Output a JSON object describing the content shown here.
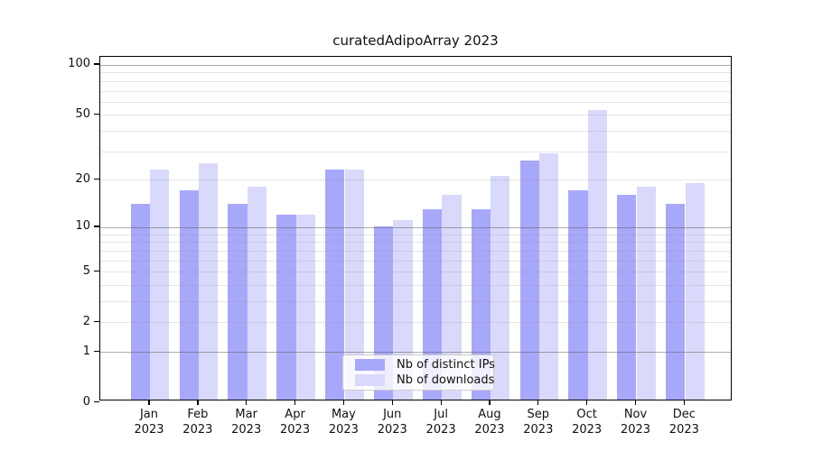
{
  "title": "curatedAdipoArray 2023",
  "chart_data": {
    "type": "bar",
    "title": "curatedAdipoArray 2023",
    "categories": [
      "Jan",
      "Feb",
      "Mar",
      "Apr",
      "May",
      "Jun",
      "Jul",
      "Aug",
      "Sep",
      "Oct",
      "Nov",
      "Dec"
    ],
    "year_label": "2023",
    "series": [
      {
        "name": "Nb of distinct IPs",
        "color": "#a8a8fa",
        "values": [
          14,
          17,
          14,
          12,
          23,
          10,
          13,
          13,
          26,
          17,
          16,
          14
        ]
      },
      {
        "name": "Nb of downloads",
        "color": "#d9d9fb",
        "values": [
          23,
          25,
          18,
          12,
          23,
          11,
          16,
          21,
          29,
          53,
          18,
          19
        ]
      }
    ],
    "xlabel": "",
    "ylabel": "",
    "yscale": "log1p",
    "ytick_labels": [
      "0",
      "1",
      "2",
      "5",
      "10",
      "20",
      "50",
      "100"
    ],
    "ytick_values": [
      0,
      1,
      2,
      5,
      10,
      20,
      50,
      100
    ],
    "major_gridlines": [
      1,
      10,
      100
    ],
    "minor_gridlines": [
      2,
      3,
      4,
      5,
      6,
      7,
      8,
      9,
      20,
      30,
      40,
      50,
      60,
      70,
      80,
      90
    ],
    "ylim": [
      0,
      112
    ],
    "grid": true,
    "legend_position": "lower center",
    "colors": {
      "bar_distinct_ips": "#a8a8fa",
      "bar_downloads": "#d9d9fb",
      "axis": "#000000",
      "grid_minor": "#e6e6e6",
      "grid_major": "#adadad"
    }
  }
}
